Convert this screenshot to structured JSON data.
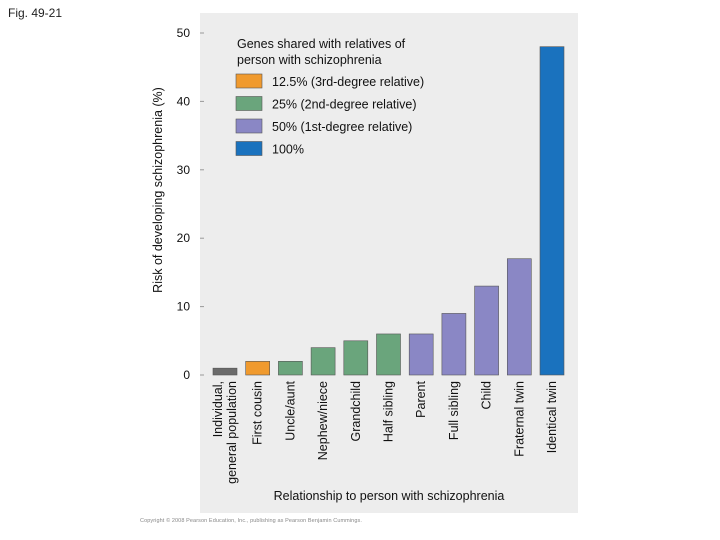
{
  "figure_label": "Fig. 49-21",
  "copyright": "Copyright © 2008 Pearson Education, Inc., publishing as Pearson Benjamin Cummings.",
  "colors": {
    "panel_bg": "#ededed",
    "gray": "#6b6b6b",
    "orange": "#f09a2e",
    "green": "#6aa57c",
    "purple": "#8a87c5",
    "blue": "#1a72be"
  },
  "chart_data": {
    "type": "bar",
    "title": "",
    "xlabel": "Relationship to person with schizophrenia",
    "ylabel": "Risk of developing schizophrenia (%)",
    "ylim": [
      0,
      50
    ],
    "yticks": [
      0,
      10,
      20,
      30,
      40,
      50
    ],
    "grid": false,
    "legend_title": "Genes shared with relatives of person with schizophrenia",
    "legend_position": "top-left",
    "legend": [
      {
        "label": "12.5% (3rd-degree relative)",
        "color_key": "orange"
      },
      {
        "label": "25% (2nd-degree relative)",
        "color_key": "green"
      },
      {
        "label": "50% (1st-degree relative)",
        "color_key": "purple"
      },
      {
        "label": "100%",
        "color_key": "blue"
      }
    ],
    "categories": [
      {
        "label_lines": [
          "Individual,",
          "general population"
        ],
        "value": 1,
        "color_key": "gray"
      },
      {
        "label_lines": [
          "First cousin"
        ],
        "value": 2,
        "color_key": "orange"
      },
      {
        "label_lines": [
          "Uncle/aunt"
        ],
        "value": 2,
        "color_key": "green"
      },
      {
        "label_lines": [
          "Nephew/niece"
        ],
        "value": 4,
        "color_key": "green"
      },
      {
        "label_lines": [
          "Grandchild"
        ],
        "value": 5,
        "color_key": "green"
      },
      {
        "label_lines": [
          "Half sibling"
        ],
        "value": 6,
        "color_key": "green"
      },
      {
        "label_lines": [
          "Parent"
        ],
        "value": 6,
        "color_key": "purple"
      },
      {
        "label_lines": [
          "Full sibling"
        ],
        "value": 9,
        "color_key": "purple"
      },
      {
        "label_lines": [
          "Child"
        ],
        "value": 13,
        "color_key": "purple"
      },
      {
        "label_lines": [
          "Fraternal twin"
        ],
        "value": 17,
        "color_key": "purple"
      },
      {
        "label_lines": [
          "Identical twin"
        ],
        "value": 48,
        "color_key": "blue"
      }
    ]
  }
}
